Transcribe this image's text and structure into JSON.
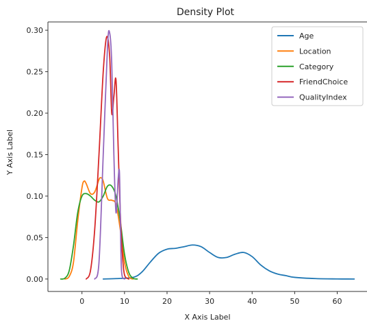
{
  "chart_data": {
    "type": "line",
    "title": "Density Plot",
    "xlabel": "X Axis Label",
    "ylabel": "Y Axis Label",
    "xlim": [
      -8,
      67
    ],
    "ylim": [
      -0.015,
      0.31
    ],
    "xticks": [
      0,
      10,
      20,
      30,
      40,
      50,
      60
    ],
    "yticks": [
      0.0,
      0.05,
      0.1,
      0.15,
      0.2,
      0.25,
      0.3
    ],
    "ytick_labels": [
      "0.00",
      "0.05",
      "0.10",
      "0.15",
      "0.20",
      "0.25",
      "0.30"
    ],
    "grid": false,
    "legend": "top-right",
    "series": [
      {
        "name": "Age",
        "color": "#1f77b4",
        "x": [
          5,
          8,
          12,
          14,
          16,
          18,
          20,
          22,
          24,
          26,
          28,
          30,
          32,
          34,
          36,
          38,
          40,
          42,
          44,
          46,
          48,
          50,
          55,
          60,
          64
        ],
        "y": [
          0.0,
          0.0005,
          0.002,
          0.008,
          0.02,
          0.031,
          0.036,
          0.037,
          0.039,
          0.041,
          0.039,
          0.032,
          0.026,
          0.026,
          0.03,
          0.032,
          0.027,
          0.017,
          0.01,
          0.006,
          0.004,
          0.002,
          0.0005,
          0.0001,
          0.0
        ]
      },
      {
        "name": "Location",
        "color": "#ff7f0e",
        "x": [
          -4,
          -3,
          -2,
          -1,
          0,
          0.5,
          1,
          2,
          3,
          4,
          4.5,
          5,
          6,
          7,
          8,
          9,
          10,
          11,
          12
        ],
        "y": [
          0.0,
          0.003,
          0.02,
          0.07,
          0.11,
          0.118,
          0.115,
          0.103,
          0.105,
          0.12,
          0.122,
          0.118,
          0.097,
          0.095,
          0.09,
          0.06,
          0.02,
          0.003,
          0.0
        ]
      },
      {
        "name": "Category",
        "color": "#2ca02c",
        "x": [
          -5,
          -4,
          -3,
          -2,
          -1,
          0,
          1,
          2,
          3,
          4,
          5,
          6,
          7,
          8,
          9,
          10,
          11,
          12,
          13
        ],
        "y": [
          0.0,
          0.001,
          0.01,
          0.04,
          0.08,
          0.1,
          0.103,
          0.1,
          0.095,
          0.093,
          0.1,
          0.112,
          0.112,
          0.1,
          0.07,
          0.03,
          0.008,
          0.001,
          0.0
        ]
      },
      {
        "name": "FriendChoice",
        "color": "#d62728",
        "x": [
          1,
          2,
          3,
          4,
          5,
          5.8,
          6.5,
          7,
          7.5,
          8,
          8.5,
          9,
          9.5,
          10,
          11
        ],
        "y": [
          0.0,
          0.01,
          0.06,
          0.15,
          0.25,
          0.292,
          0.27,
          0.2,
          0.22,
          0.24,
          0.16,
          0.08,
          0.03,
          0.005,
          0.0
        ]
      },
      {
        "name": "QualityIndex",
        "color": "#9467bd",
        "x": [
          3,
          4,
          5,
          6,
          6.5,
          7,
          7.5,
          8,
          8.5,
          8.8,
          9,
          9.3,
          10
        ],
        "y": [
          0.0,
          0.02,
          0.15,
          0.28,
          0.297,
          0.26,
          0.15,
          0.08,
          0.12,
          0.13,
          0.08,
          0.01,
          0.0
        ]
      }
    ]
  }
}
